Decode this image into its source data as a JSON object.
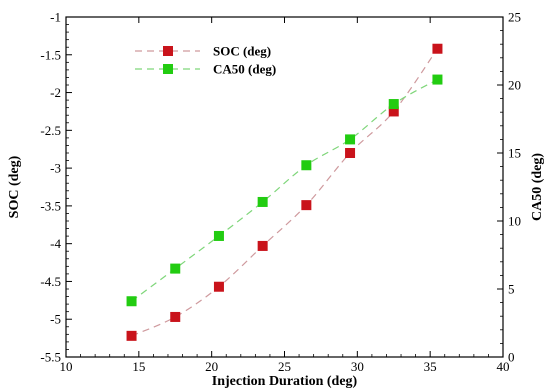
{
  "chart_data": {
    "type": "line",
    "x": [
      14.5,
      17.5,
      20.5,
      23.5,
      26.5,
      29.5,
      32.5,
      35.5
    ],
    "series": [
      {
        "name": "SOC (deg)",
        "axis": "left",
        "color": "#c9131b",
        "line_color": "#cf9a9e",
        "values": [
          -5.22,
          -4.97,
          -4.57,
          -4.03,
          -3.49,
          -2.8,
          -2.25,
          -1.42
        ]
      },
      {
        "name": "CA50 (deg)",
        "axis": "right",
        "color": "#22cc11",
        "line_color": "#7fd67a",
        "values": [
          4.1,
          6.5,
          8.9,
          11.4,
          14.1,
          16.0,
          18.6,
          20.4
        ]
      }
    ],
    "xlabel": "Injection Duration (deg)",
    "ylabel": "SOC (deg)",
    "y2label": "CA50 (deg)",
    "xlim": [
      10,
      40
    ],
    "ylim": [
      -5.5,
      -1
    ],
    "y2lim": [
      0,
      25
    ],
    "xticks": [
      "10",
      "15",
      "20",
      "25",
      "30",
      "35",
      "40"
    ],
    "yticks": [
      "-5.5",
      "-5",
      "-4.5",
      "-4",
      "-3.5",
      "-3",
      "-2.5",
      "-2",
      "-1.5",
      "-1"
    ],
    "y2ticks": [
      "0",
      "5",
      "10",
      "15",
      "20",
      "25"
    ],
    "legend_position": "top-left",
    "grid": false
  }
}
